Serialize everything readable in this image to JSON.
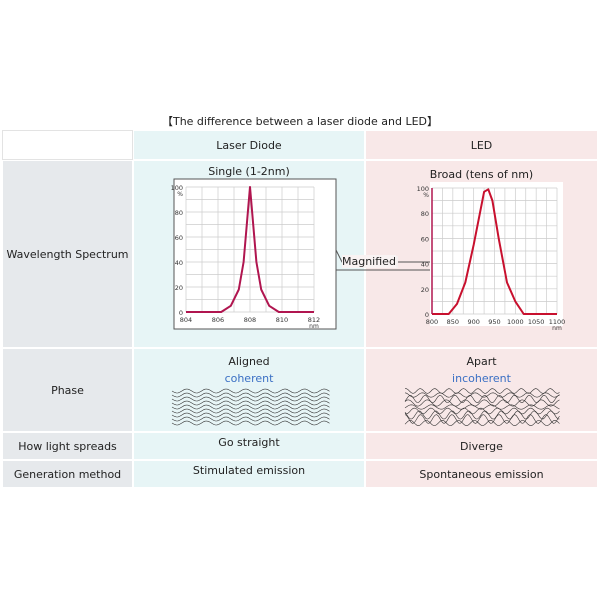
{
  "title": "【The difference between a laser diode and LED】",
  "columns": {
    "ld": "Laser Diode",
    "led": "LED"
  },
  "rows": {
    "spectrum": "Wavelength Spectrum",
    "phase": "Phase",
    "spread": "How light spreads",
    "generation": "Generation method"
  },
  "ld": {
    "spectrum": "Single (1-2nm)",
    "phase": "Aligned",
    "phase_note": "coherent",
    "spread": "Go straight",
    "generation": "Stimulated emission"
  },
  "led": {
    "spectrum": "Broad (tens of nm)",
    "phase": "Apart",
    "phase_note": "incoherent",
    "spread": "Diverge",
    "generation": "Spontaneous emission"
  },
  "callout": "Magnified",
  "chart_data": [
    {
      "type": "line",
      "xlabel": "nm",
      "ylabel": "%",
      "xlim": [
        804,
        812
      ],
      "ylim": [
        0,
        100
      ],
      "xticks": [
        "804",
        "806",
        "808",
        "810",
        "812"
      ],
      "yticks": [
        "0",
        "20",
        "40",
        "60",
        "80",
        "100"
      ],
      "color": "#b0154f",
      "x": [
        804,
        806.2,
        806.8,
        807.3,
        807.6,
        807.8,
        808,
        808.2,
        808.4,
        808.7,
        809.2,
        809.8,
        812
      ],
      "y": [
        0,
        0,
        5,
        18,
        40,
        70,
        100,
        70,
        40,
        18,
        5,
        0,
        0
      ]
    },
    {
      "type": "line",
      "xlabel": "nm",
      "ylabel": "%",
      "xlim": [
        800,
        1100
      ],
      "ylim": [
        0,
        100
      ],
      "xticks": [
        "800",
        "850",
        "900",
        "950",
        "1000",
        "1050",
        "1100"
      ],
      "yticks": [
        "0",
        "20",
        "40",
        "60",
        "80",
        "100"
      ],
      "color": "#c8102e",
      "x": [
        800,
        840,
        860,
        880,
        900,
        915,
        925,
        935,
        945,
        960,
        980,
        1000,
        1020,
        1100
      ],
      "y": [
        0,
        0,
        8,
        25,
        55,
        80,
        97,
        99,
        90,
        60,
        25,
        10,
        0,
        0
      ]
    }
  ]
}
